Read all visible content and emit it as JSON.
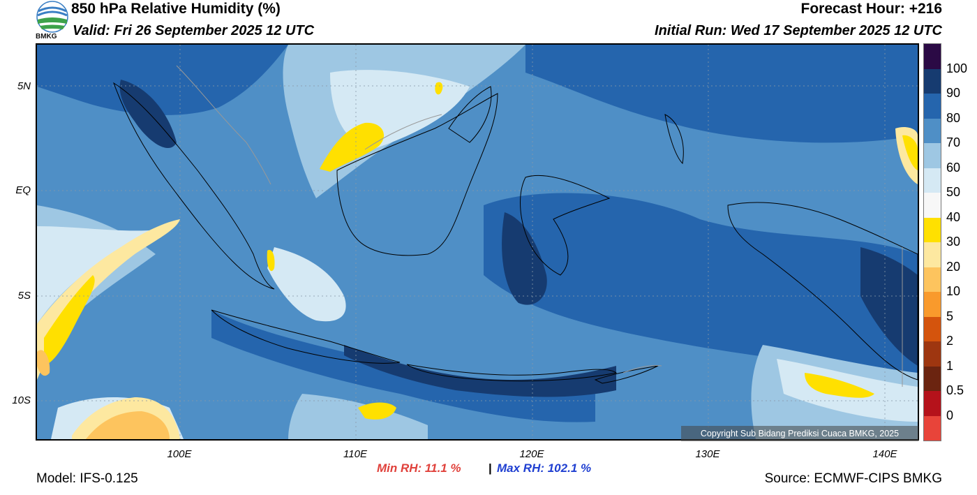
{
  "header": {
    "title": "850 hPa Relative Humidity (%)",
    "valid": "Valid: Fri 26 September 2025 12 UTC",
    "forecast_hour": "Forecast Hour: +216",
    "initial_run": "Initial Run: Wed 17 September 2025 12 UTC"
  },
  "logo": {
    "text": "BMKG",
    "icon": "bmkg-logo-icon"
  },
  "axes": {
    "lat_labels": [
      "5N",
      "EQ",
      "5S",
      "10S"
    ],
    "lon_labels": [
      "100E",
      "110E",
      "120E",
      "130E",
      "140E"
    ]
  },
  "colorbar": {
    "labels": [
      "100",
      "90",
      "80",
      "70",
      "60",
      "50",
      "40",
      "30",
      "20",
      "10",
      "5",
      "2",
      "1",
      "0.5",
      "0"
    ],
    "colors": [
      "#2b0a45",
      "#163b70",
      "#2565ad",
      "#4f8fc6",
      "#9ec7e3",
      "#d5e9f4",
      "#f7f7f7",
      "#ffe000",
      "#fde8a0",
      "#fdc45e",
      "#f99a2c",
      "#d4540d",
      "#9e3610",
      "#6b2410",
      "#b5121b",
      "#e8443a"
    ]
  },
  "stats": {
    "min_rh": "Min RH:  11.1 %",
    "separator": "|",
    "max_rh": "Max RH: 102.1 %"
  },
  "footer": {
    "model": "Model: IFS-0.125",
    "source": "Source: ECMWF-CIPS BMKG",
    "copyright": "Copyright Sub Bidang Prediksi Cuaca BMKG, 2025"
  }
}
